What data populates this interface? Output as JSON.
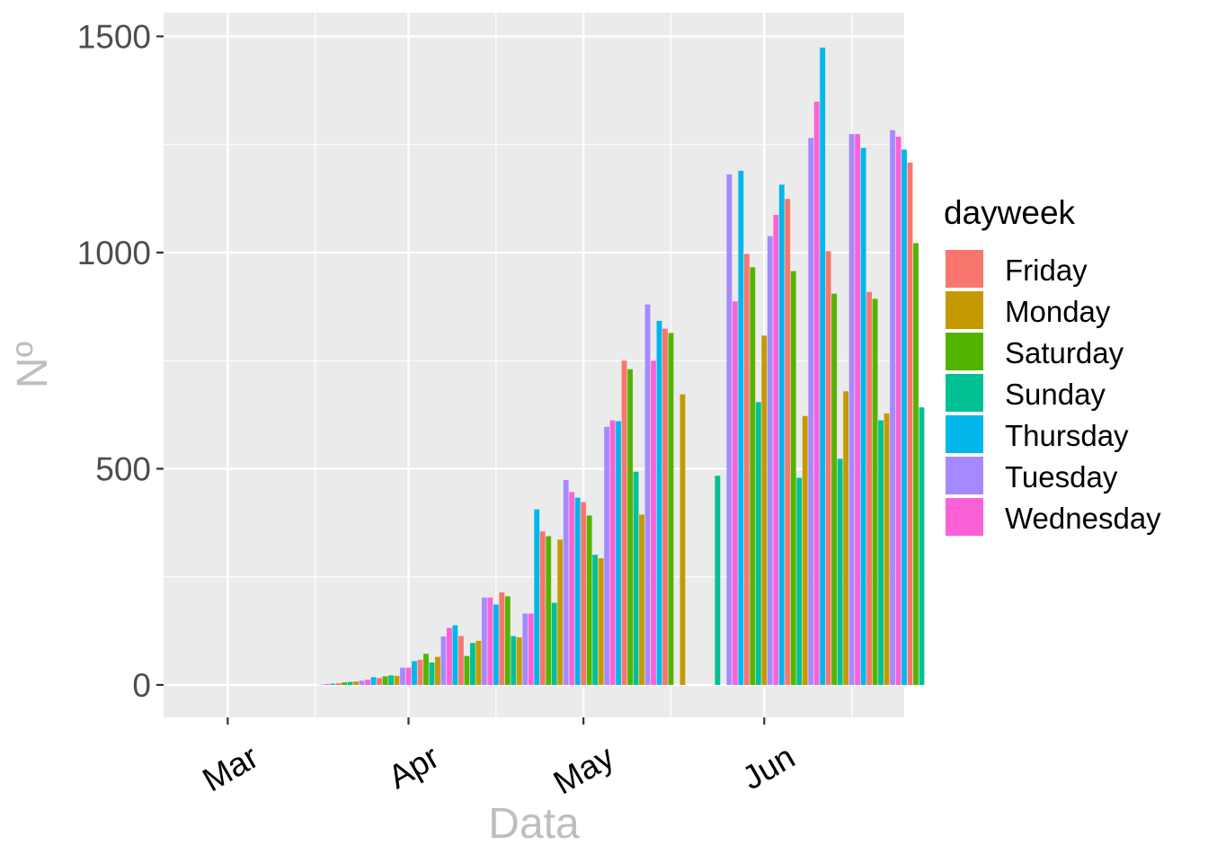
{
  "chart_data": {
    "type": "bar",
    "xlabel": "Data",
    "ylabel": "Nº",
    "ylim": [
      -75,
      1555
    ],
    "y_ticks": [
      0,
      500,
      1000,
      1500
    ],
    "x_ticks": [
      {
        "date": "2020-03-01",
        "label": "Mar"
      },
      {
        "date": "2020-04-01",
        "label": "Apr"
      },
      {
        "date": "2020-05-01",
        "label": "May"
      },
      {
        "date": "2020-06-01",
        "label": "Jun"
      }
    ],
    "x_minor_ticks": [
      "2020-03-16",
      "2020-04-16",
      "2020-05-16",
      "2020-06-16"
    ],
    "xlim": [
      "2020-02-19",
      "2020-06-25"
    ],
    "grid": true,
    "panel_background": "#ebebeb",
    "legend": {
      "title": "dayweek",
      "placement": "right",
      "entries": [
        {
          "name": "Friday",
          "color": "#F8766D"
        },
        {
          "name": "Monday",
          "color": "#C49A00"
        },
        {
          "name": "Saturday",
          "color": "#53B400"
        },
        {
          "name": "Sunday",
          "color": "#00C094"
        },
        {
          "name": "Thursday",
          "color": "#00B6EB"
        },
        {
          "name": "Tuesday",
          "color": "#A58AFF"
        },
        {
          "name": "Wednesday",
          "color": "#FB61D7"
        }
      ]
    },
    "points": [
      {
        "date": "2020-03-16",
        "day": "Monday",
        "value": 0
      },
      {
        "date": "2020-03-17",
        "day": "Tuesday",
        "value": 1
      },
      {
        "date": "2020-03-18",
        "day": "Wednesday",
        "value": 2
      },
      {
        "date": "2020-03-19",
        "day": "Thursday",
        "value": 3
      },
      {
        "date": "2020-03-20",
        "day": "Friday",
        "value": 4
      },
      {
        "date": "2020-03-21",
        "day": "Saturday",
        "value": 6
      },
      {
        "date": "2020-03-22",
        "day": "Sunday",
        "value": 7
      },
      {
        "date": "2020-03-23",
        "day": "Monday",
        "value": 8
      },
      {
        "date": "2020-03-24",
        "day": "Tuesday",
        "value": 10
      },
      {
        "date": "2020-03-25",
        "day": "Wednesday",
        "value": 12
      },
      {
        "date": "2020-03-26",
        "day": "Thursday",
        "value": 18
      },
      {
        "date": "2020-03-27",
        "day": "Friday",
        "value": 16
      },
      {
        "date": "2020-03-28",
        "day": "Saturday",
        "value": 20
      },
      {
        "date": "2020-03-29",
        "day": "Sunday",
        "value": 22
      },
      {
        "date": "2020-03-30",
        "day": "Monday",
        "value": 21
      },
      {
        "date": "2020-03-31",
        "day": "Tuesday",
        "value": 40
      },
      {
        "date": "2020-04-01",
        "day": "Wednesday",
        "value": 40
      },
      {
        "date": "2020-04-02",
        "day": "Thursday",
        "value": 55
      },
      {
        "date": "2020-04-03",
        "day": "Friday",
        "value": 58
      },
      {
        "date": "2020-04-04",
        "day": "Saturday",
        "value": 72
      },
      {
        "date": "2020-04-05",
        "day": "Sunday",
        "value": 52
      },
      {
        "date": "2020-04-06",
        "day": "Monday",
        "value": 65
      },
      {
        "date": "2020-04-07",
        "day": "Tuesday",
        "value": 112
      },
      {
        "date": "2020-04-08",
        "day": "Wednesday",
        "value": 132
      },
      {
        "date": "2020-04-09",
        "day": "Thursday",
        "value": 138
      },
      {
        "date": "2020-04-10",
        "day": "Friday",
        "value": 113
      },
      {
        "date": "2020-04-11",
        "day": "Saturday",
        "value": 67
      },
      {
        "date": "2020-04-12",
        "day": "Sunday",
        "value": 97
      },
      {
        "date": "2020-04-13",
        "day": "Monday",
        "value": 102
      },
      {
        "date": "2020-04-14",
        "day": "Tuesday",
        "value": 202
      },
      {
        "date": "2020-04-15",
        "day": "Wednesday",
        "value": 202
      },
      {
        "date": "2020-04-16",
        "day": "Thursday",
        "value": 186
      },
      {
        "date": "2020-04-17",
        "day": "Friday",
        "value": 214
      },
      {
        "date": "2020-04-18",
        "day": "Saturday",
        "value": 205
      },
      {
        "date": "2020-04-19",
        "day": "Sunday",
        "value": 113
      },
      {
        "date": "2020-04-20",
        "day": "Monday",
        "value": 110
      },
      {
        "date": "2020-04-21",
        "day": "Tuesday",
        "value": 165
      },
      {
        "date": "2020-04-22",
        "day": "Wednesday",
        "value": 165
      },
      {
        "date": "2020-04-23",
        "day": "Thursday",
        "value": 406
      },
      {
        "date": "2020-04-24",
        "day": "Friday",
        "value": 355
      },
      {
        "date": "2020-04-25",
        "day": "Saturday",
        "value": 344
      },
      {
        "date": "2020-04-26",
        "day": "Sunday",
        "value": 190
      },
      {
        "date": "2020-04-27",
        "day": "Monday",
        "value": 336
      },
      {
        "date": "2020-04-28",
        "day": "Tuesday",
        "value": 474
      },
      {
        "date": "2020-04-29",
        "day": "Wednesday",
        "value": 446
      },
      {
        "date": "2020-04-30",
        "day": "Thursday",
        "value": 433
      },
      {
        "date": "2020-05-01",
        "day": "Friday",
        "value": 423
      },
      {
        "date": "2020-05-02",
        "day": "Saturday",
        "value": 392
      },
      {
        "date": "2020-05-03",
        "day": "Sunday",
        "value": 301
      },
      {
        "date": "2020-05-04",
        "day": "Monday",
        "value": 293
      },
      {
        "date": "2020-05-05",
        "day": "Tuesday",
        "value": 597
      },
      {
        "date": "2020-05-06",
        "day": "Wednesday",
        "value": 612
      },
      {
        "date": "2020-05-07",
        "day": "Thursday",
        "value": 610
      },
      {
        "date": "2020-05-08",
        "day": "Friday",
        "value": 750
      },
      {
        "date": "2020-05-09",
        "day": "Saturday",
        "value": 730
      },
      {
        "date": "2020-05-10",
        "day": "Sunday",
        "value": 493
      },
      {
        "date": "2020-05-11",
        "day": "Monday",
        "value": 394
      },
      {
        "date": "2020-05-12",
        "day": "Tuesday",
        "value": 880
      },
      {
        "date": "2020-05-13",
        "day": "Wednesday",
        "value": 750
      },
      {
        "date": "2020-05-14",
        "day": "Thursday",
        "value": 842
      },
      {
        "date": "2020-05-15",
        "day": "Friday",
        "value": 824
      },
      {
        "date": "2020-05-16",
        "day": "Saturday",
        "value": 814
      },
      {
        "date": "2020-05-17",
        "day": "Sunday",
        "value": 0
      },
      {
        "date": "2020-05-18",
        "day": "Monday",
        "value": 672
      },
      {
        "date": "2020-05-19",
        "day": "Tuesday",
        "value": 0
      },
      {
        "date": "2020-05-20",
        "day": "Wednesday",
        "value": 0
      },
      {
        "date": "2020-05-21",
        "day": "Thursday",
        "value": 0
      },
      {
        "date": "2020-05-22",
        "day": "Friday",
        "value": 0
      },
      {
        "date": "2020-05-23",
        "day": "Saturday",
        "value": 0
      },
      {
        "date": "2020-05-24",
        "day": "Sunday",
        "value": 484
      },
      {
        "date": "2020-05-25",
        "day": "Monday",
        "value": 0
      },
      {
        "date": "2020-05-26",
        "day": "Tuesday",
        "value": 1181
      },
      {
        "date": "2020-05-27",
        "day": "Wednesday",
        "value": 887
      },
      {
        "date": "2020-05-28",
        "day": "Thursday",
        "value": 1189
      },
      {
        "date": "2020-05-29",
        "day": "Friday",
        "value": 997
      },
      {
        "date": "2020-05-30",
        "day": "Saturday",
        "value": 966
      },
      {
        "date": "2020-05-31",
        "day": "Sunday",
        "value": 654
      },
      {
        "date": "2020-06-01",
        "day": "Monday",
        "value": 808
      },
      {
        "date": "2020-06-02",
        "day": "Tuesday",
        "value": 1038
      },
      {
        "date": "2020-06-03",
        "day": "Wednesday",
        "value": 1087
      },
      {
        "date": "2020-06-04",
        "day": "Thursday",
        "value": 1157
      },
      {
        "date": "2020-06-05",
        "day": "Friday",
        "value": 1124
      },
      {
        "date": "2020-06-06",
        "day": "Saturday",
        "value": 957
      },
      {
        "date": "2020-06-07",
        "day": "Sunday",
        "value": 479
      },
      {
        "date": "2020-06-08",
        "day": "Monday",
        "value": 622
      },
      {
        "date": "2020-06-09",
        "day": "Tuesday",
        "value": 1265
      },
      {
        "date": "2020-06-10",
        "day": "Wednesday",
        "value": 1349
      },
      {
        "date": "2020-06-11",
        "day": "Thursday",
        "value": 1474
      },
      {
        "date": "2020-06-12",
        "day": "Friday",
        "value": 1003
      },
      {
        "date": "2020-06-13",
        "day": "Saturday",
        "value": 905
      },
      {
        "date": "2020-06-14",
        "day": "Sunday",
        "value": 523
      },
      {
        "date": "2020-06-15",
        "day": "Monday",
        "value": 679
      },
      {
        "date": "2020-06-16",
        "day": "Tuesday",
        "value": 1274
      },
      {
        "date": "2020-06-17",
        "day": "Wednesday",
        "value": 1274
      },
      {
        "date": "2020-06-18",
        "day": "Thursday",
        "value": 1242
      },
      {
        "date": "2020-06-19",
        "day": "Friday",
        "value": 909
      },
      {
        "date": "2020-06-20",
        "day": "Saturday",
        "value": 893
      },
      {
        "date": "2020-06-21",
        "day": "Sunday",
        "value": 612
      },
      {
        "date": "2020-06-22",
        "day": "Monday",
        "value": 628
      },
      {
        "date": "2020-06-23",
        "day": "Tuesday",
        "value": 1283
      },
      {
        "date": "2020-06-24",
        "day": "Wednesday",
        "value": 1268
      },
      {
        "date": "2020-06-25",
        "day": "Thursday",
        "value": 1238
      },
      {
        "date": "2020-06-26",
        "day": "Friday",
        "value": 1208
      },
      {
        "date": "2020-06-27",
        "day": "Saturday",
        "value": 1022
      },
      {
        "date": "2020-06-28",
        "day": "Sunday",
        "value": 642
      }
    ]
  }
}
